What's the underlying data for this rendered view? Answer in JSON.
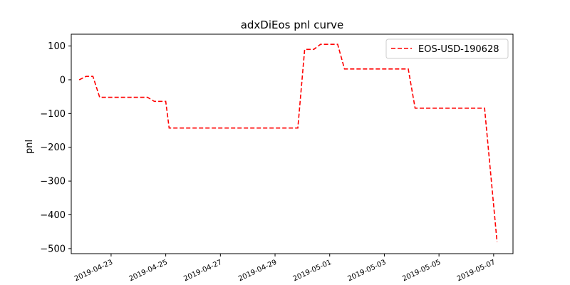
{
  "chart_data": {
    "type": "line",
    "title": "adxDiEos pnl curve",
    "xlabel": "",
    "ylabel": "pnl",
    "x_ticks": [
      "2019-04-23",
      "2019-04-25",
      "2019-04-27",
      "2019-04-29",
      "2019-05-01",
      "2019-05-03",
      "2019-05-05",
      "2019-05-07"
    ],
    "y_ticks": [
      100,
      0,
      -100,
      -200,
      -300,
      -400,
      -500
    ],
    "y_tick_labels": [
      "100",
      "0",
      "−100",
      "−200",
      "−300",
      "−400",
      "−500"
    ],
    "xlim": [
      "2019-04-21T13:00",
      "2019-05-07T17:00"
    ],
    "ylim": [
      -515,
      135
    ],
    "grid": false,
    "legend_position": "top-right",
    "series": [
      {
        "name": "EOS-USD-190628",
        "color": "#ff0000",
        "style": "dashed",
        "points": [
          [
            "2019-04-21T20:00",
            0
          ],
          [
            "2019-04-22T02:00",
            10
          ],
          [
            "2019-04-22T08:00",
            10
          ],
          [
            "2019-04-22T14:00",
            -52
          ],
          [
            "2019-04-24T08:00",
            -52
          ],
          [
            "2019-04-24T14:00",
            -64
          ],
          [
            "2019-04-25T00:00",
            -64
          ],
          [
            "2019-04-25T03:00",
            -143
          ],
          [
            "2019-04-29T20:00",
            -143
          ],
          [
            "2019-04-30T02:00",
            90
          ],
          [
            "2019-04-30T10:00",
            90
          ],
          [
            "2019-04-30T16:00",
            105
          ],
          [
            "2019-05-01T07:00",
            105
          ],
          [
            "2019-05-01T13:00",
            32
          ],
          [
            "2019-05-03T21:00",
            32
          ],
          [
            "2019-05-04T03:00",
            -84
          ],
          [
            "2019-05-06T16:00",
            -84
          ],
          [
            "2019-05-07T03:00",
            -480
          ]
        ]
      }
    ]
  }
}
